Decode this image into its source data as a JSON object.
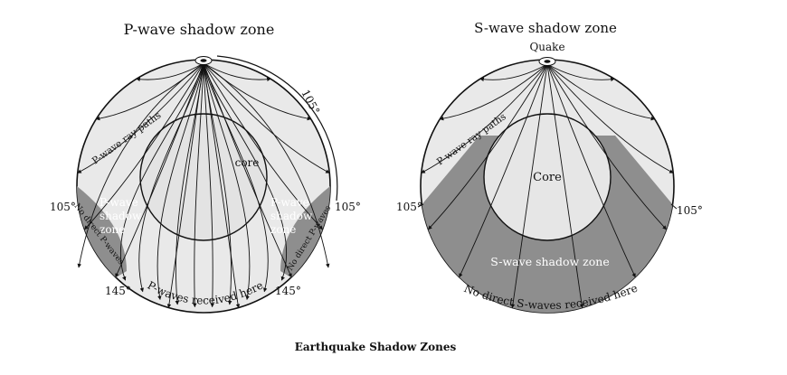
{
  "caption": "Earthquake Shadow Zones",
  "p_diagram": {
    "title": "P-wave shadow zone",
    "angle_top": "105°",
    "angle_left": "105°",
    "angle_right": "105°",
    "angle_bottom_left": "145°",
    "angle_bottom_right": "145°",
    "ray_label": "P-wave ray paths",
    "core_label": "core",
    "shadow_left": [
      "P-wave",
      "shadow",
      "zone"
    ],
    "shadow_right": [
      "P-wave",
      "shadow",
      "zone"
    ],
    "no_direct_left": "No direct P-waves",
    "no_direct_right": "No direct P-waves",
    "received": "P-waves received here"
  },
  "s_diagram": {
    "title": "S-wave shadow zone",
    "quake_label": "Quake",
    "ray_label": "P-wave ray paths",
    "core_label": "Core",
    "angle_left": "105°",
    "angle_right": "105°",
    "shadow_label": "S-wave shadow zone",
    "no_direct": "No direct S-waves received here"
  },
  "colors": {
    "mantle": "#e9e9e9",
    "shadow": "#8e8e8e",
    "core": "#e6e6e6",
    "line": "#111111"
  }
}
